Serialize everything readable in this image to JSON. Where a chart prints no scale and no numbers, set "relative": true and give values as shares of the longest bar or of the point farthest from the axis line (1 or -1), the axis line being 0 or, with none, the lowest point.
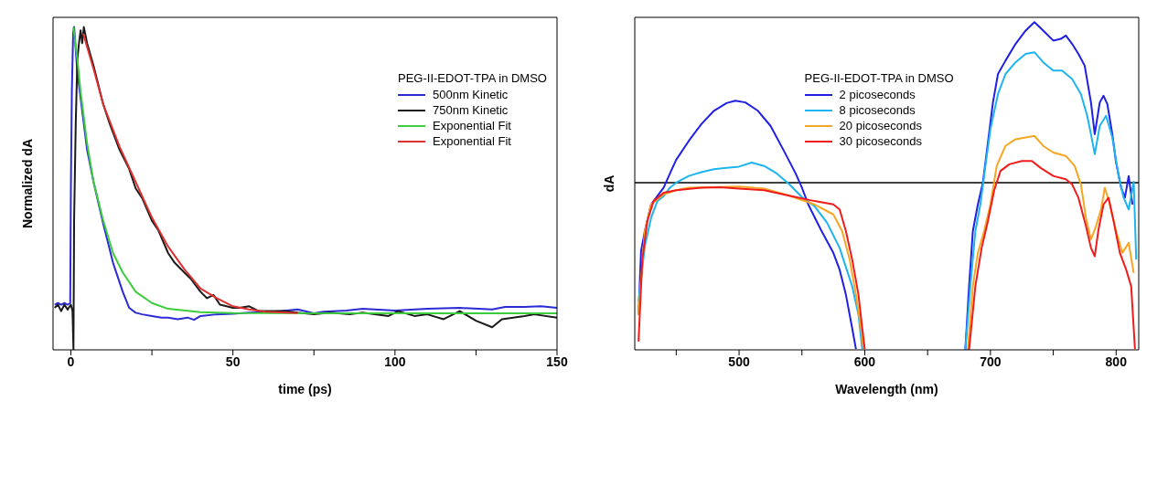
{
  "chart_data": [
    {
      "type": "line",
      "relative": true,
      "xlabel": "time (ps)",
      "ylabel": "Normalized dA",
      "legend_title": "PEG-II-EDOT-TPA in DMSO",
      "legend": "top right",
      "grid": false,
      "marker": "none",
      "xlim": [
        -5.5,
        150
      ],
      "xticks": [
        0,
        {
          "value": 25,
          "label": null
        },
        50,
        {
          "value": 75,
          "label": null
        },
        100,
        {
          "value": 125,
          "label": null
        },
        150
      ],
      "series": [
        {
          "name": "500nm Kinetic",
          "color": "#2b2bd6",
          "x": [
            -5,
            -4,
            -3,
            -2,
            -1,
            -0.2,
            0,
            0.3,
            0.7,
            1,
            1.5,
            2,
            3,
            4,
            5,
            7,
            10,
            13,
            16,
            18,
            20,
            22,
            25,
            28,
            30,
            33,
            36,
            38,
            40,
            45,
            50,
            55,
            60,
            65,
            70,
            75,
            78,
            85,
            90,
            100,
            110,
            120,
            130,
            134,
            140,
            145,
            150
          ],
          "values": [
            0.14,
            0.145,
            0.14,
            0.145,
            0.14,
            0.145,
            0.5,
            0.8,
            0.98,
            1.0,
            0.93,
            0.86,
            0.78,
            0.7,
            0.62,
            0.52,
            0.39,
            0.27,
            0.18,
            0.13,
            0.115,
            0.11,
            0.105,
            0.1,
            0.1,
            0.095,
            0.1,
            0.093,
            0.105,
            0.11,
            0.112,
            0.115,
            0.117,
            0.12,
            0.125,
            0.113,
            0.118,
            0.122,
            0.127,
            0.122,
            0.127,
            0.13,
            0.125,
            0.133,
            0.133,
            0.135,
            0.13
          ]
        },
        {
          "name": "750nm Kinetic",
          "color": "#1a1a1a",
          "x": [
            -5,
            -4,
            -3,
            -2,
            -1,
            0,
            0.5,
            0.8,
            1,
            1.5,
            2,
            2.5,
            3,
            3.5,
            4,
            5,
            7,
            10,
            12,
            15,
            18,
            20,
            22,
            25,
            27,
            30,
            32,
            35,
            37,
            40,
            42,
            44,
            46,
            48,
            50,
            52,
            55,
            58,
            62,
            66,
            70,
            75,
            80,
            86,
            90,
            98,
            101,
            106,
            110,
            115,
            120,
            125,
            130,
            133,
            140,
            143,
            150
          ],
          "values": [
            0.13,
            0.14,
            0.12,
            0.14,
            0.125,
            0.14,
            0.12,
            0.0,
            0.4,
            0.7,
            0.9,
            0.95,
            0.99,
            0.95,
            1.0,
            0.95,
            0.88,
            0.76,
            0.7,
            0.62,
            0.56,
            0.5,
            0.47,
            0.4,
            0.37,
            0.3,
            0.27,
            0.24,
            0.22,
            0.18,
            0.16,
            0.17,
            0.14,
            0.135,
            0.13,
            0.13,
            0.135,
            0.12,
            0.12,
            0.12,
            0.115,
            0.11,
            0.115,
            0.11,
            0.115,
            0.105,
            0.12,
            0.105,
            0.11,
            0.095,
            0.12,
            0.09,
            0.07,
            0.095,
            0.105,
            0.11,
            0.1
          ]
        },
        {
          "name": "Exponential Fit",
          "color": "#3ccc3c",
          "x": [
            0.8,
            1,
            2,
            3,
            5,
            7,
            10,
            13,
            16,
            20,
            25,
            30,
            40,
            50,
            150
          ],
          "values": [
            1.0,
            0.98,
            0.9,
            0.8,
            0.64,
            0.52,
            0.4,
            0.3,
            0.24,
            0.18,
            0.145,
            0.127,
            0.117,
            0.114,
            0.113
          ]
        },
        {
          "name": "Exponential Fit",
          "color": "#e03030",
          "x": [
            3.8,
            7,
            10,
            15,
            20,
            25,
            30,
            35,
            40,
            45,
            50,
            55,
            60,
            70
          ],
          "values": [
            0.98,
            0.87,
            0.76,
            0.63,
            0.52,
            0.41,
            0.32,
            0.25,
            0.19,
            0.16,
            0.135,
            0.125,
            0.118,
            0.114
          ]
        }
      ]
    },
    {
      "type": "line",
      "relative": true,
      "xlabel": "Wavelength (nm)",
      "ylabel": "dA",
      "legend_title": "PEG-II-EDOT-TPA in DMSO",
      "legend": "top",
      "grid": false,
      "marker": "none",
      "xlim": [
        417,
        818
      ],
      "xticks": [
        {
          "value": 450,
          "label": null
        },
        500,
        {
          "value": 550,
          "label": null
        },
        600,
        {
          "value": 650,
          "label": null
        },
        700,
        {
          "value": 750,
          "label": null
        },
        800
      ],
      "series": [
        {
          "name": "2 picoseconds",
          "color": "#1f1fe6",
          "x": [
            420,
            422,
            425,
            430,
            435,
            440,
            445,
            450,
            460,
            470,
            480,
            490,
            497,
            505,
            515,
            525,
            535,
            545,
            550,
            555,
            565,
            575,
            580,
            585,
            590,
            593,
            640,
            680,
            683,
            686,
            690,
            694,
            698,
            702,
            706,
            712,
            720,
            728,
            735,
            742,
            750,
            756,
            760,
            765,
            770,
            775,
            780,
            783,
            787,
            790,
            793,
            797,
            800,
            804,
            807,
            810,
            813
          ],
          "values": [
            -0.79,
            -0.41,
            -0.29,
            -0.13,
            -0.08,
            -0.03,
            0.055,
            0.137,
            0.25,
            0.35,
            0.43,
            0.476,
            0.49,
            0.48,
            0.43,
            0.34,
            0.2,
            0.055,
            -0.03,
            -0.13,
            -0.28,
            -0.42,
            -0.52,
            -0.67,
            -0.87,
            -0.995,
            null,
            -1.0,
            -0.62,
            -0.29,
            -0.13,
            0,
            0.24,
            0.48,
            0.65,
            0.73,
            0.83,
            0.91,
            0.96,
            0.91,
            0.85,
            0.86,
            0.88,
            0.83,
            0.77,
            0.7,
            0.48,
            0.29,
            0.48,
            0.52,
            0.47,
            0.29,
            0.12,
            -0.03,
            -0.09,
            0.04,
            -0.13
          ]
        },
        {
          "name": "8 picoseconds",
          "color": "#1eb4f0",
          "x": [
            420,
            425,
            430,
            435,
            440,
            445,
            450,
            460,
            470,
            480,
            490,
            500,
            510,
            520,
            530,
            540,
            550,
            560,
            570,
            580,
            590,
            595,
            598,
            640,
            680,
            684,
            688,
            692,
            696,
            700,
            706,
            712,
            720,
            728,
            735,
            742,
            750,
            757,
            765,
            772,
            777,
            780,
            783,
            787,
            792,
            797,
            802,
            806,
            810,
            814,
            816
          ],
          "values": [
            -0.71,
            -0.38,
            -0.21,
            -0.11,
            -0.08,
            -0.03,
            0,
            0.04,
            0.063,
            0.08,
            0.088,
            0.096,
            0.12,
            0.1,
            0.055,
            -0.01,
            -0.086,
            -0.14,
            -0.24,
            -0.39,
            -0.62,
            -0.79,
            -0.995,
            null,
            -1.0,
            -0.62,
            -0.29,
            -0.13,
            0.1,
            0.32,
            0.53,
            0.65,
            0.72,
            0.77,
            0.78,
            0.72,
            0.67,
            0.67,
            0.62,
            0.53,
            0.4,
            0.29,
            0.17,
            0.34,
            0.4,
            0.27,
            0.04,
            -0.09,
            -0.16,
            0.005,
            -0.46
          ]
        },
        {
          "name": "20 picoseconds",
          "color": "#f5a623",
          "x": [
            420,
            425,
            430,
            440,
            450,
            460,
            480,
            500,
            520,
            540,
            560,
            575,
            582,
            588,
            593,
            597,
            599,
            640,
            682,
            686,
            690,
            695,
            700,
            705,
            712,
            720,
            728,
            735,
            742,
            750,
            760,
            767,
            772,
            776,
            780,
            784,
            788,
            791,
            795,
            800,
            805,
            810,
            814
          ],
          "values": [
            -0.79,
            -0.29,
            -0.13,
            -0.07,
            -0.045,
            -0.03,
            -0.028,
            -0.023,
            -0.036,
            -0.078,
            -0.13,
            -0.19,
            -0.29,
            -0.46,
            -0.67,
            -0.87,
            -0.995,
            null,
            -1.0,
            -0.62,
            -0.42,
            -0.29,
            -0.13,
            0.1,
            0.22,
            0.26,
            0.27,
            0.28,
            0.22,
            0.18,
            0.16,
            0.1,
            -0.01,
            -0.21,
            -0.34,
            -0.26,
            -0.16,
            -0.03,
            -0.13,
            -0.29,
            -0.42,
            -0.36,
            -0.54
          ]
        },
        {
          "name": "30 picoseconds",
          "color": "#f01c1c",
          "x": [
            420,
            423,
            427,
            432,
            440,
            450,
            470,
            485,
            500,
            520,
            540,
            560,
            575,
            580,
            585,
            590,
            595,
            598,
            600,
            640,
            683,
            688,
            693,
            698,
            703,
            708,
            715,
            725,
            733,
            740,
            750,
            760,
            765,
            770,
            776,
            780,
            783,
            786,
            790,
            794,
            798,
            803,
            808,
            812,
            815
          ],
          "values": [
            -0.95,
            -0.46,
            -0.23,
            -0.11,
            -0.06,
            -0.045,
            -0.03,
            -0.028,
            -0.036,
            -0.045,
            -0.078,
            -0.11,
            -0.13,
            -0.16,
            -0.29,
            -0.46,
            -0.67,
            -0.87,
            -0.995,
            null,
            -1.0,
            -0.62,
            -0.39,
            -0.23,
            -0.045,
            0.07,
            0.11,
            0.13,
            0.13,
            0.088,
            0.04,
            0.02,
            -0.01,
            -0.09,
            -0.26,
            -0.39,
            -0.44,
            -0.28,
            -0.13,
            -0.09,
            -0.23,
            -0.42,
            -0.52,
            -0.62,
            -0.995
          ]
        }
      ]
    }
  ]
}
